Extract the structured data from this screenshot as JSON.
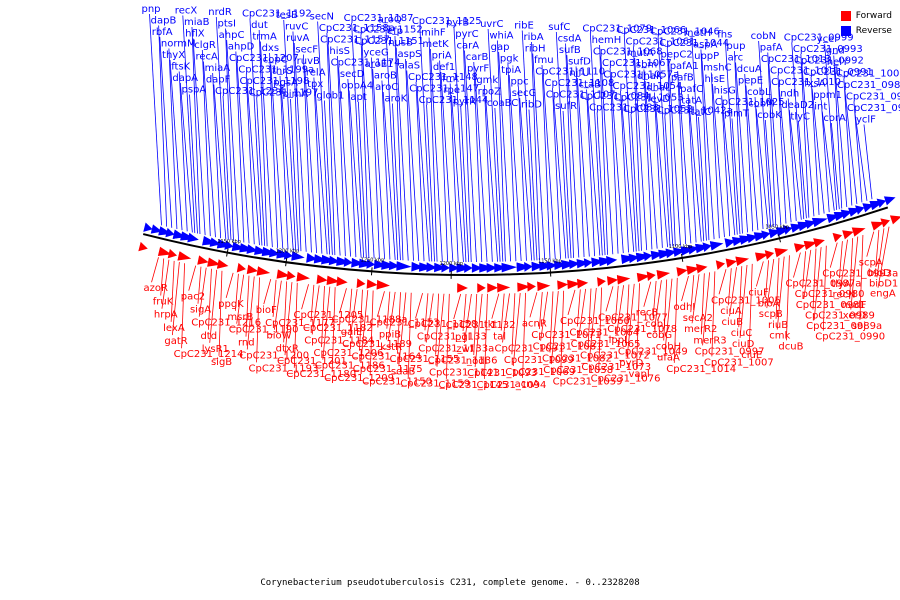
{
  "caption": "Corynebacterium pseudotuberculosis C231, complete genome. - 0..2328208",
  "legend": [
    {
      "label": "Forward",
      "color": "#ff0000"
    },
    {
      "label": "Reverse",
      "color": "#0000ff"
    }
  ],
  "colors": {
    "forward": "#ff0000",
    "reverse": "#0000ff",
    "backbone": "#000000"
  },
  "ticks": [
    "1150 kbp",
    "1200 kbp",
    "1250 kbp",
    "1200 kbp",
    "1150 kbp",
    "1100 kbp",
    "1050 kbp"
  ],
  "reverse_labels": [
    "pnp",
    "dapB",
    "rbfA",
    "normM",
    "thyX",
    "ftsK",
    "dapA",
    "pspA",
    "recX",
    "miaB",
    "hflX",
    "clgR",
    "recA",
    "miaA",
    "dapF",
    "CpC231_1234",
    "nrdR",
    "ptsI",
    "ahpC",
    "ahpD",
    "CpC231_1207",
    "CpC231_1199a",
    "CpC231_1198",
    "CpC231_1197",
    "CpC231_1192",
    "dut",
    "trmA",
    "dxs",
    "copC",
    "thrS",
    "pgsA",
    "pimA",
    "tesB",
    "ruvC",
    "ruvA",
    "secF",
    "ruvB",
    "relA",
    "tpx",
    "glob1",
    "secN",
    "CpC231_1158a",
    "CpC231_1157",
    "hisS",
    "CpC231_1174",
    "secD",
    "oppA4",
    "apt",
    "CpC231_1187",
    "CpC231_1152",
    "CpC231_1151",
    "yceG",
    "aroE1",
    "aroB",
    "aroC",
    "aroK",
    "aroQ",
    "efp",
    "nusB",
    "aspS",
    "alaS",
    "CpC231_1148",
    "CpC231_1147",
    "CpC231_1144",
    "CpC231_1125",
    "mihF",
    "metK",
    "priA",
    "def1",
    "fmt",
    "rpe",
    "pyrR",
    "pyrB",
    "pyrC",
    "carA",
    "carB",
    "pyrF",
    "gmk",
    "rpoZ",
    "coaBC",
    "uvrC",
    "whiA",
    "gap",
    "pgk",
    "tpiA",
    "ppc",
    "secG",
    "ribD",
    "ribE",
    "ribA",
    "ribH",
    "fmu",
    "CpC231_1110",
    "CpC231_1108",
    "CpC231_1107",
    "sufR",
    "sufC",
    "csdA",
    "sufB",
    "sufD",
    "nifU",
    "ctaB",
    "CpC231_1084",
    "CpC231_1083",
    "CpC231_1079",
    "hemH",
    "CpC231_1068",
    "CpC231_1067",
    "CpC231_1057a",
    "CpC231_1054",
    "CpC231_1053",
    "CpC231_1052",
    "CpC231_1066",
    "CpC231_1061",
    "mutA",
    "sbm",
    "dhaK",
    "dhaL",
    "levD",
    "CpC231_1042a",
    "CpC231_1046",
    "CpC231_1044",
    "pepC2",
    "pafA1",
    "pafB",
    "pafC",
    "tatA",
    "tatC",
    "metH",
    "aspA",
    "uppP",
    "mshC",
    "hisE",
    "hisG",
    "CpC231_1025",
    "pimT",
    "fhs",
    "pup",
    "arc",
    "dcuA",
    "pepE",
    "cobL",
    "cobM",
    "cobK",
    "cobN",
    "pafA",
    "CpC231_1013",
    "CpC231_1011",
    "CpC231_1010",
    "ndh",
    "deaD2",
    "tlyC",
    "CpC231_0999",
    "CpC231_0993",
    "CpC231_0992",
    "CpC231_0991",
    "fxsA",
    "ppm1",
    "int",
    "corA",
    "ycel",
    "gnd",
    "helY",
    "CpC231_1001",
    "CpC231_0988",
    "CpC231_0979",
    "CpC231_0987b",
    "yclF"
  ],
  "forward_labels": [
    "azoR",
    "fruK",
    "hrpA",
    "lexA",
    "gatR",
    "CpC231_1214",
    "pac2",
    "sigA",
    "CpC231_1216",
    "dtd",
    "lysR1",
    "sigB",
    "ppgK",
    "msrB",
    "CpC231_1190",
    "rnd",
    "CpC231_1200",
    "CpC231_1193",
    "bioF",
    "CpC231_1177",
    "bioW",
    "dtxR",
    "CpC231_1201",
    "CpC231_1180",
    "CpC231_1205",
    "CpC231_1182",
    "CpC231_1184",
    "CpC231_1206",
    "CpC231_1186",
    "CpC231_1209",
    "CpC231_1188a",
    "galE",
    "CpC231_1189",
    "CpC231_1164",
    "CpC231_1175",
    "CpC231_1150",
    "CpC231_1153",
    "ppiB",
    "kstR",
    "CpC231_1155",
    "sdaB",
    "CpC231_1159",
    "CpC231_1158",
    "CpC231_1133",
    "CpC231_1133a",
    "CpC231_1136",
    "CpC231_1141",
    "CpC231_1145",
    "CpC231_1132",
    "pgl",
    "zwf",
    "nodI",
    "CpC231_1093",
    "CpC231_1094",
    "tkt",
    "tal",
    "CpC231_1091",
    "CpC231_1099",
    "CpC231_1069",
    "acnA",
    "acnR",
    "CpC231_1071",
    "CpC231_1081",
    "CpC231_1082",
    "CpC231_1058",
    "CpC231_1059",
    "CpC231_1060",
    "CpC231_1064",
    "CpC231_1065",
    "CpC231_1072",
    "CpC231_1073",
    "CpC231_1076",
    "CpC231_1077",
    "CpC231_1078",
    "lppL",
    "CpC231_1049",
    "pyrD",
    "vapI",
    "recB",
    "cobJ",
    "cobG",
    "cobH",
    "ufaA",
    "CpC231_1014",
    "odhI",
    "secA2",
    "merR2",
    "merR3",
    "CpC231_0997",
    "CpC231_1007",
    "CpC231_1005",
    "ciuA",
    "ciuB",
    "ciuC",
    "ciuD",
    "ciuE",
    "ciuF",
    "bioA",
    "scpB",
    "riuB",
    "cmk",
    "dcuB",
    "CpC231_0987a",
    "CpC231_0980",
    "CpC231_0981",
    "CpC231_0989",
    "CpC231_0989a",
    "CpC231_0990",
    "CpC231_0993a",
    "tlyA",
    "recN",
    "nudF",
    "xerD",
    "soj",
    "scpA",
    "bioD",
    "bioD1",
    "engA"
  ]
}
